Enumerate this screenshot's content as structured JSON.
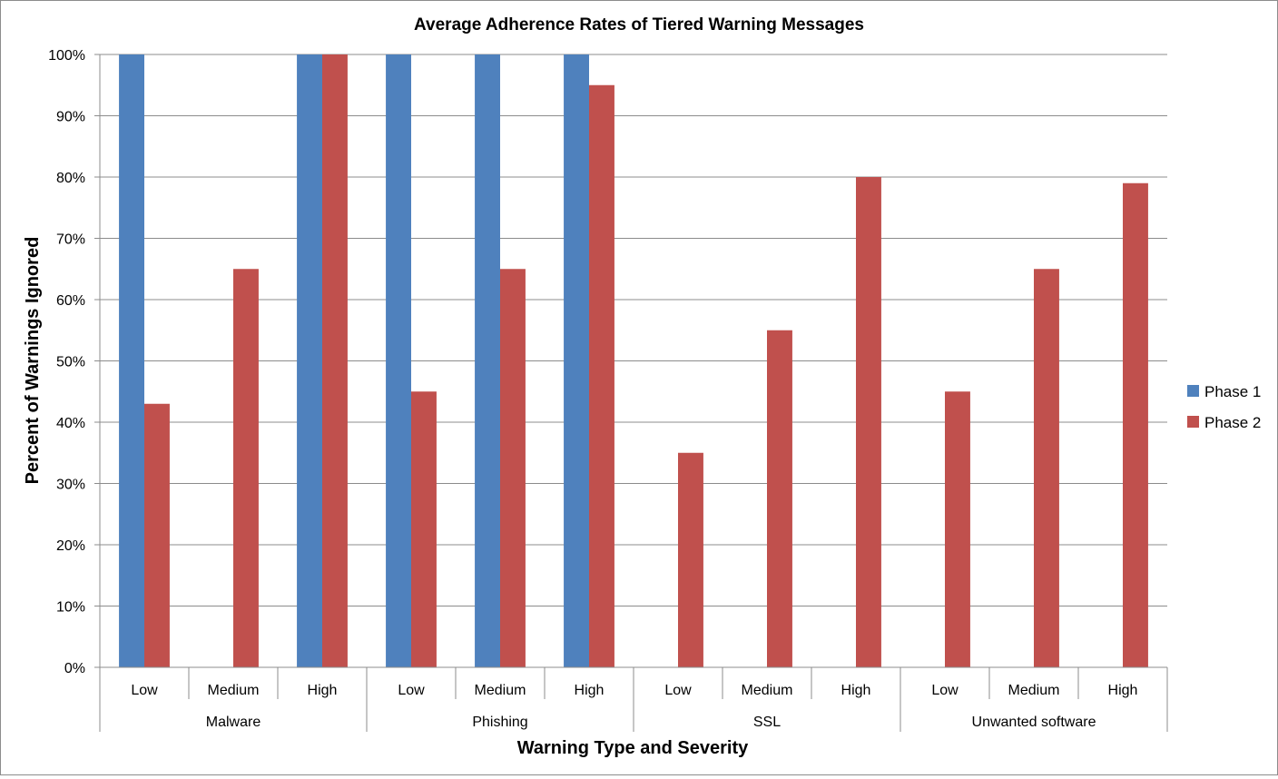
{
  "chart_data": {
    "type": "bar",
    "title": "Average Adherence Rates of Tiered Warning Messages",
    "xlabel": "Warning Type and Severity",
    "ylabel": "Percent of Warnings Ignored",
    "ylim": [
      0,
      100
    ],
    "y_ticks": [
      "0%",
      "10%",
      "20%",
      "30%",
      "40%",
      "50%",
      "60%",
      "70%",
      "80%",
      "90%",
      "100%"
    ],
    "grid": true,
    "legend_position": "right",
    "groups": [
      {
        "name": "Malware",
        "categories": [
          "Low",
          "Medium",
          "High"
        ]
      },
      {
        "name": "Phishing",
        "categories": [
          "Low",
          "Medium",
          "High"
        ]
      },
      {
        "name": "SSL",
        "categories": [
          "Low",
          "Medium",
          "High"
        ]
      },
      {
        "name": "Unwanted software",
        "categories": [
          "Low",
          "Medium",
          "High"
        ]
      }
    ],
    "categories": [
      "Low",
      "Medium",
      "High",
      "Low",
      "Medium",
      "High",
      "Low",
      "Medium",
      "High",
      "Low",
      "Medium",
      "High"
    ],
    "series": [
      {
        "name": "Phase 1",
        "color": "#4f81bd",
        "values": [
          100,
          null,
          100,
          100,
          100,
          100,
          null,
          null,
          null,
          null,
          null,
          null
        ]
      },
      {
        "name": "Phase 2",
        "color": "#c0504d",
        "values": [
          43,
          65,
          100,
          45,
          65,
          95,
          35,
          55,
          80,
          45,
          65,
          79
        ]
      }
    ]
  }
}
